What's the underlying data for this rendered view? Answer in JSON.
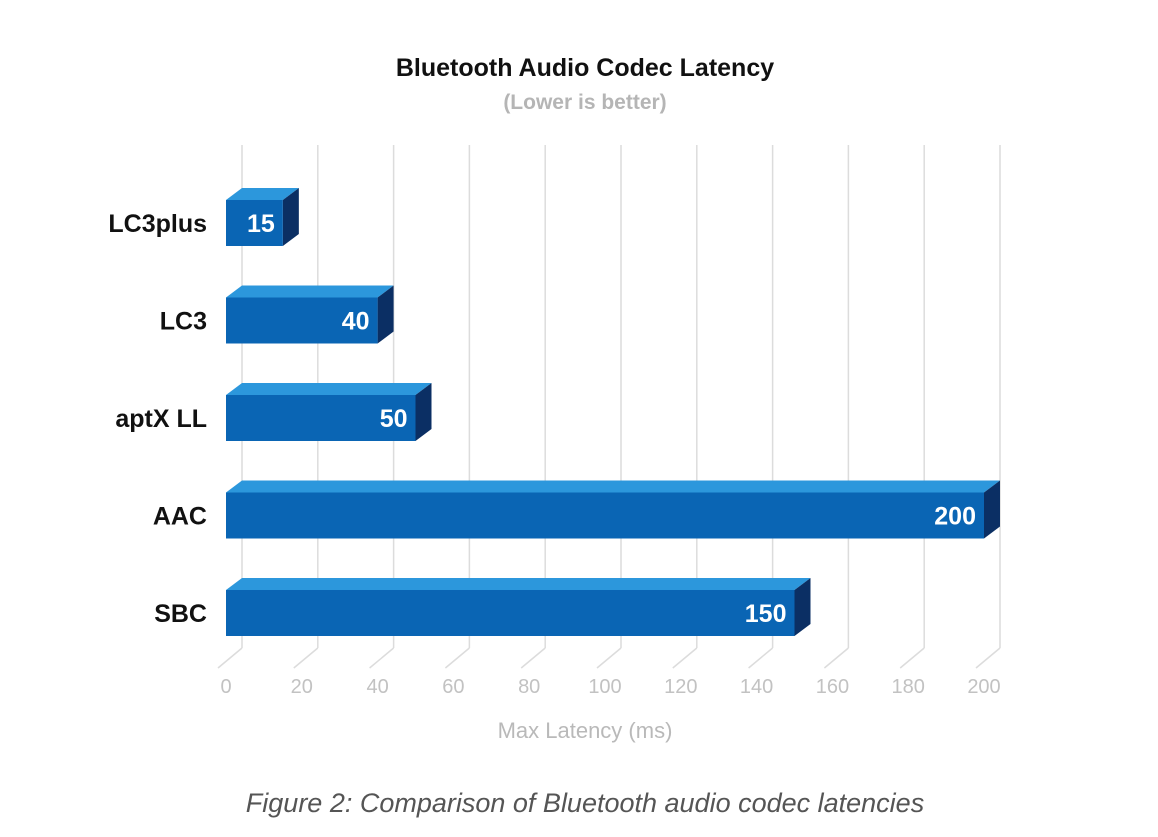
{
  "chart_data": {
    "type": "bar",
    "orientation": "horizontal",
    "title": "Bluetooth Audio Codec Latency",
    "subtitle": "(Lower is better)",
    "categories": [
      "LC3plus",
      "LC3",
      "aptX LL",
      "AAC",
      "SBC"
    ],
    "values": [
      15,
      40,
      50,
      200,
      150
    ],
    "value_labels": [
      "15",
      "40",
      "50",
      "200",
      "150"
    ],
    "xlabel": "Max Latency (ms)",
    "ylabel": "",
    "xlim": [
      0,
      200
    ],
    "xticks": [
      0,
      20,
      40,
      60,
      80,
      100,
      120,
      140,
      160,
      180,
      200
    ],
    "xtick_labels": [
      "0",
      "20",
      "40",
      "60",
      "80",
      "100",
      "120",
      "140",
      "160",
      "180",
      "200"
    ],
    "grid": true,
    "style": "3d",
    "colors": {
      "bar_front": "#0a65b4",
      "bar_top": "#2c97dc",
      "bar_side": "#0b2f64",
      "grid": "#dcdcdc"
    }
  },
  "caption": "Figure 2: Comparison of Bluetooth audio codec latencies"
}
